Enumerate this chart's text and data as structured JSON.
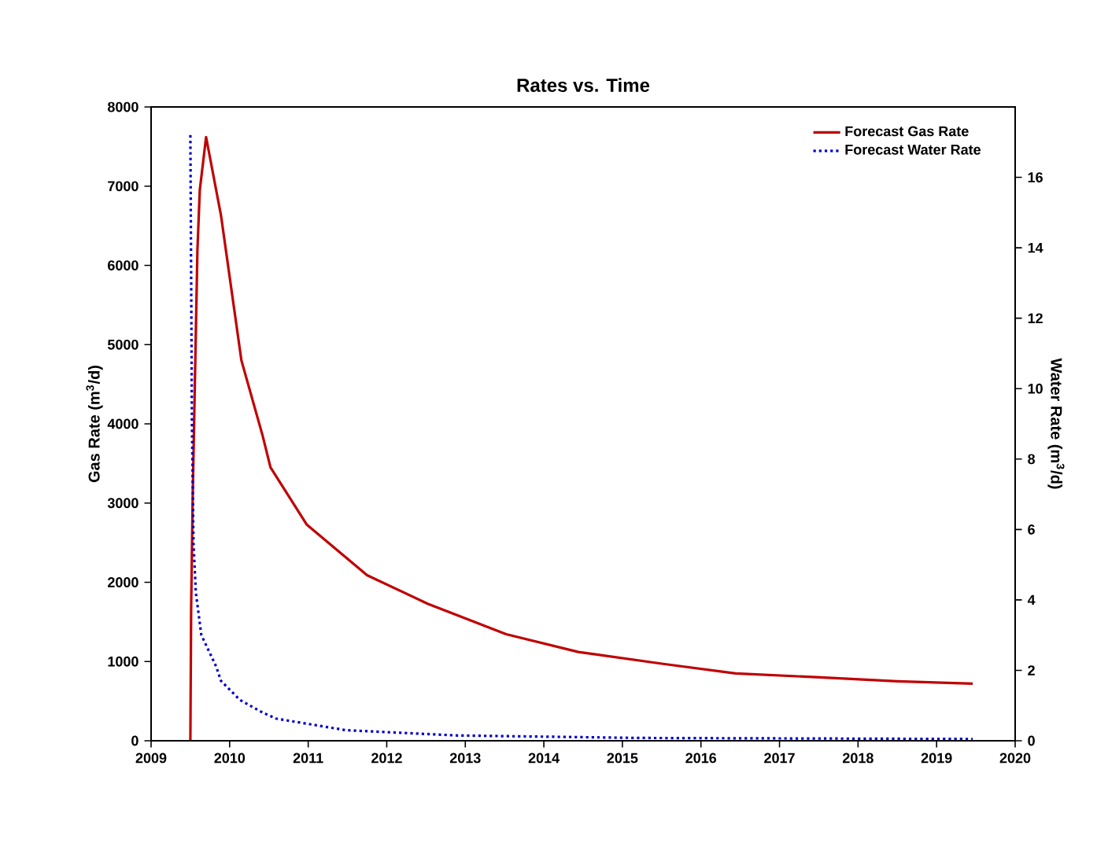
{
  "chart_data": {
    "type": "line",
    "title": "Rates vs. Time",
    "ylabel": "Gas Rate (m$^{3}$/d)",
    "y2label": "Water Rate (m$^{3}$/d)",
    "xlim": [
      2009,
      2020
    ],
    "xticks": [
      2009,
      2010,
      2011,
      2012,
      2013,
      2014,
      2015,
      2016,
      2017,
      2018,
      2019,
      2020
    ],
    "ylim": [
      0,
      8000
    ],
    "yticks": [
      0,
      1000,
      2000,
      3000,
      4000,
      5000,
      6000,
      7000,
      8000
    ],
    "y2lim": [
      0,
      18
    ],
    "y2ticks": [
      0,
      2,
      4,
      6,
      8,
      10,
      12,
      14,
      16
    ],
    "grid": false,
    "legend": "top right",
    "marker": "none",
    "series": [
      {
        "name": "Forecast Gas Rate",
        "color": "#c00000",
        "line_style": "solid",
        "x": [
          2009.5,
          2009.51,
          2009.53,
          2009.59,
          2009.62,
          2009.7,
          2009.89,
          2010.15,
          2010.42,
          2010.52,
          2010.98,
          2011.75,
          2012.52,
          2013.52,
          2014.44,
          2015.52,
          2016.44,
          2017.52,
          2018.5,
          2019.46
        ],
        "values": [
          0,
          1700,
          3100,
          6200,
          6950,
          7620,
          6630,
          4800,
          3850,
          3450,
          2730,
          2090,
          1730,
          1345,
          1120,
          970,
          850,
          800,
          750,
          720
        ]
      },
      {
        "name": "Forecast Water Rate",
        "color": "#0000cc",
        "line_style": "dotted",
        "axis": "y2",
        "x": [
          2009.5,
          2009.52,
          2009.54,
          2009.57,
          2009.64,
          2009.83,
          2009.89,
          2010.13,
          2010.42,
          2010.59,
          2011.48,
          2012.9,
          2015.2,
          2019.46
        ],
        "values": [
          17.2,
          9.0,
          5.6,
          4.2,
          3.0,
          2.1,
          1.7,
          1.16,
          0.8,
          0.63,
          0.3,
          0.15,
          0.08,
          0.05
        ]
      }
    ]
  }
}
